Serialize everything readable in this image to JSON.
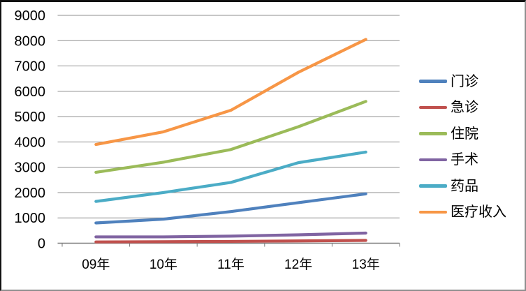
{
  "chart_data": {
    "type": "line",
    "title": "",
    "xlabel": "",
    "ylabel": "",
    "categories": [
      "09年",
      "10年",
      "11年",
      "12年",
      "13年"
    ],
    "series": [
      {
        "name": "门诊",
        "color": "#4F81BD",
        "values": [
          800,
          950,
          1250,
          1600,
          1950
        ]
      },
      {
        "name": "急诊",
        "color": "#C0504D",
        "values": [
          50,
          60,
          70,
          90,
          110
        ]
      },
      {
        "name": "住院",
        "color": "#9BBB59",
        "values": [
          2800,
          3200,
          3700,
          4600,
          5600
        ]
      },
      {
        "name": "手术",
        "color": "#8064A2",
        "values": [
          250,
          250,
          280,
          330,
          400
        ]
      },
      {
        "name": "药品",
        "color": "#4BACC6",
        "values": [
          1650,
          2000,
          2400,
          3180,
          3600
        ]
      },
      {
        "name": "医疗收入",
        "color": "#F79646",
        "values": [
          3900,
          4400,
          5250,
          6750,
          8050
        ]
      }
    ],
    "ylim": [
      0,
      9000
    ],
    "y_ticks": [
      0,
      1000,
      2000,
      3000,
      4000,
      5000,
      6000,
      7000,
      8000,
      9000
    ],
    "grid": true,
    "legend_position": "right",
    "legend_entries": [
      "门诊",
      "急诊",
      "住院",
      "手术",
      "药品",
      "医疗收入"
    ]
  },
  "colors": {
    "gridline": "#8f8f8f",
    "axis": "#7a7a7a",
    "tick_text": "#000000",
    "background": "#ffffff"
  }
}
